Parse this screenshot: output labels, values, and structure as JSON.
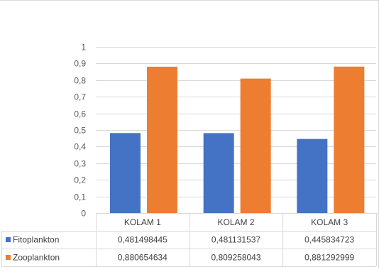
{
  "chart_data": {
    "type": "bar",
    "categories": [
      "KOLAM 1",
      "KOLAM 2",
      "KOLAM 3"
    ],
    "series": [
      {
        "name": "Fitoplankton",
        "color": "#4472C4",
        "values": [
          0.481498445,
          0.481131537,
          0.445834723
        ],
        "labels": [
          "0,481498445",
          "0,481131537",
          "0,445834723"
        ]
      },
      {
        "name": "Zooplankton",
        "color": "#ED7D31",
        "values": [
          0.880654634,
          0.809258043,
          0.881292999
        ],
        "labels": [
          "0,880654634",
          "0,809258043",
          "0,881292999"
        ]
      }
    ],
    "yticks": [
      {
        "value": 0,
        "label": "0"
      },
      {
        "value": 0.1,
        "label": "0,1"
      },
      {
        "value": 0.2,
        "label": "0,2"
      },
      {
        "value": 0.3,
        "label": "0,3"
      },
      {
        "value": 0.4,
        "label": "0,4"
      },
      {
        "value": 0.5,
        "label": "0,5"
      },
      {
        "value": 0.6,
        "label": "0,6"
      },
      {
        "value": 0.7,
        "label": "0,7"
      },
      {
        "value": 0.8,
        "label": "0,8"
      },
      {
        "value": 0.9,
        "label": "0,9"
      },
      {
        "value": 1,
        "label": "1"
      }
    ],
    "ylim": [
      0,
      1
    ],
    "grid": true,
    "legend": "data-table",
    "title": "",
    "xlabel": "",
    "ylabel": ""
  }
}
